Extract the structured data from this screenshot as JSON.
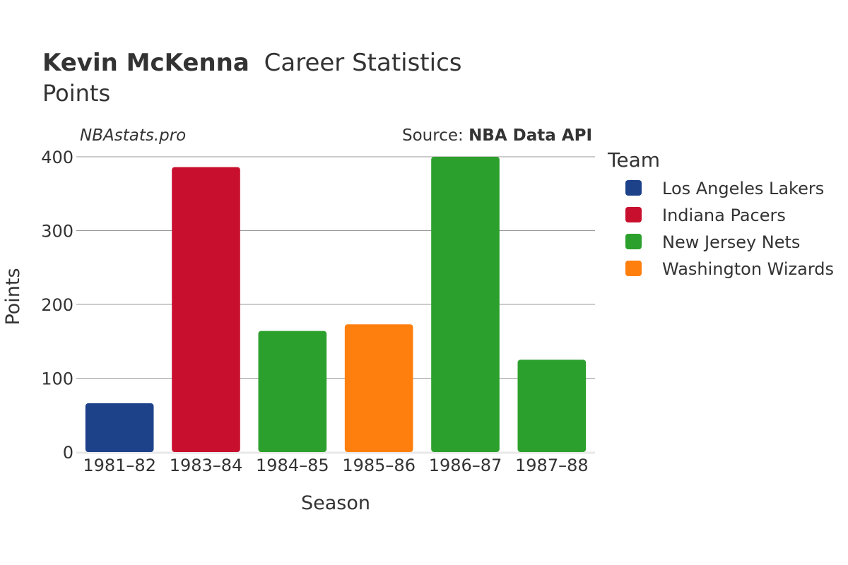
{
  "header": {
    "player_name": "Kevin McKenna",
    "title_suffix": "Career Statistics",
    "subtitle": "Points"
  },
  "watermark": "NBAstats.pro",
  "source": {
    "label": "Source: ",
    "name": "NBA Data API"
  },
  "legend": {
    "title": "Team",
    "items": [
      {
        "name": "Los Angeles Lakers",
        "color": "#1d428a"
      },
      {
        "name": "Indiana Pacers",
        "color": "#c8102e"
      },
      {
        "name": "New Jersey Nets",
        "color": "#2ca02c"
      },
      {
        "name": "Washington Wizards",
        "color": "#ff7f0e"
      }
    ]
  },
  "chart_data": {
    "type": "bar",
    "xlabel": "Season",
    "ylabel": "Points",
    "ylim": [
      0,
      400
    ],
    "yticks": [
      0,
      100,
      200,
      300,
      400
    ],
    "grid": true,
    "legend_position": "right",
    "categories": [
      "1981–82",
      "1983–84",
      "1984–85",
      "1985–86",
      "1986–87",
      "1987–88"
    ],
    "values": [
      66,
      386,
      164,
      173,
      400,
      125
    ],
    "teams": [
      "Los Angeles Lakers",
      "Indiana Pacers",
      "New Jersey Nets",
      "Washington Wizards",
      "New Jersey Nets",
      "New Jersey Nets"
    ]
  }
}
